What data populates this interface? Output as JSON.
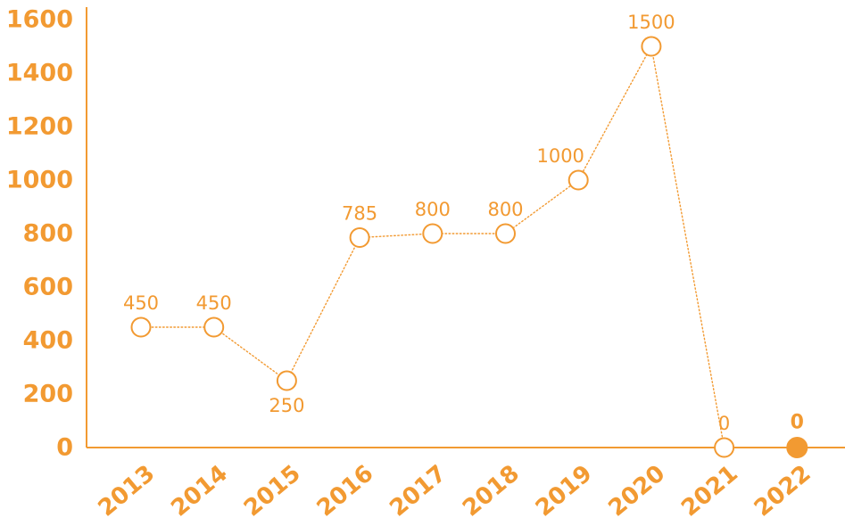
{
  "chart_data": {
    "type": "line",
    "categories": [
      "2013",
      "2014",
      "2015",
      "2016",
      "2017",
      "2018",
      "2019",
      "2020",
      "2021",
      "2022"
    ],
    "values": [
      450,
      450,
      250,
      785,
      800,
      800,
      1000,
      1500,
      0,
      0
    ],
    "data_labels": [
      "450",
      "450",
      "250",
      "785",
      "800",
      "800",
      "1000",
      "1500",
      "0",
      "0"
    ],
    "highlighted_point": "2022",
    "yticks": [
      "0",
      "200",
      "400",
      "600",
      "800",
      "1000",
      "1200",
      "1400",
      "1600"
    ],
    "ylim": [
      0,
      1600
    ],
    "grid": false,
    "legend": "none",
    "line_style": "dotted",
    "marker": "hollow circle",
    "color": "#F29A32"
  }
}
